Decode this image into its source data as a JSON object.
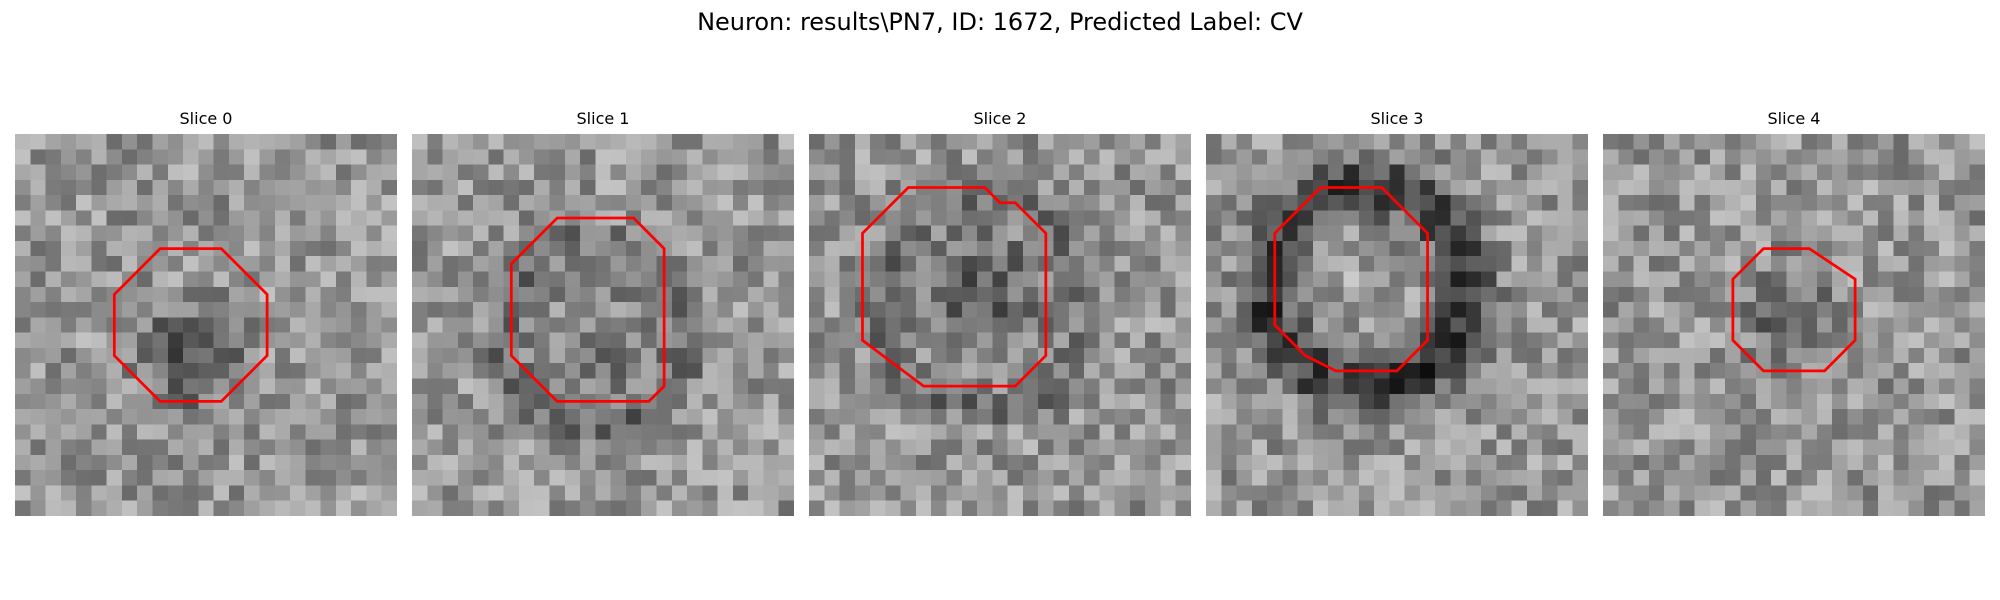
{
  "figure": {
    "title": "Neuron: results\\PN7, ID: 1672, Predicted Label: CV"
  },
  "colors": {
    "contour": "#ff0000",
    "background": "#ffffff"
  },
  "panels": [
    {
      "title": "Slice 0",
      "dark_blob": {
        "cx": 11.5,
        "cy": 14.5,
        "r": 5.0,
        "strength": 80
      },
      "shell": null,
      "ring_inner": null,
      "contour": [
        [
          9.5,
          7.5
        ],
        [
          13.5,
          7.5
        ],
        [
          16.5,
          10.5
        ],
        [
          16.5,
          14.5
        ],
        [
          13.5,
          17.5
        ],
        [
          9.5,
          17.5
        ],
        [
          6.5,
          14.5
        ],
        [
          6.5,
          10.5
        ]
      ]
    },
    {
      "title": "Slice 1",
      "dark_blob": {
        "cx": 12.0,
        "cy": 14.0,
        "r": 5.5,
        "strength": 35
      },
      "shell": {
        "cx": 12.0,
        "cy": 13.0,
        "r": 6.0,
        "width": 1.2,
        "strength": 45
      },
      "ring_inner": null,
      "contour": [
        [
          9.5,
          5.5
        ],
        [
          14.5,
          5.5
        ],
        [
          16.5,
          7.5
        ],
        [
          16.5,
          16.5
        ],
        [
          15.5,
          17.5
        ],
        [
          9.5,
          17.5
        ],
        [
          6.5,
          14.5
        ],
        [
          6.5,
          8.5
        ]
      ]
    },
    {
      "title": "Slice 2",
      "dark_blob": {
        "cx": 11.5,
        "cy": 10.5,
        "r": 6.5,
        "strength": 65
      },
      "shell": {
        "cx": 11.5,
        "cy": 11.0,
        "r": 7.0,
        "width": 1.2,
        "strength": 40
      },
      "ring_inner": null,
      "contour": [
        [
          6.5,
          3.5
        ],
        [
          11.5,
          3.5
        ],
        [
          12.5,
          4.5
        ],
        [
          13.5,
          4.5
        ],
        [
          15.5,
          6.5
        ],
        [
          15.5,
          14.5
        ],
        [
          13.5,
          16.5
        ],
        [
          7.5,
          16.5
        ],
        [
          3.5,
          13.5
        ],
        [
          3.5,
          6.5
        ]
      ]
    },
    {
      "title": "Slice 3",
      "dark_blob": null,
      "shell": {
        "cx": 10.5,
        "cy": 10.0,
        "r": 6.5,
        "width": 1.8,
        "strength": 95
      },
      "ring_inner": {
        "cx": 10.5,
        "cy": 10.5,
        "r": 4.0,
        "strength": -15
      },
      "contour": [
        [
          7.5,
          3.5
        ],
        [
          11.5,
          3.5
        ],
        [
          14.5,
          6.5
        ],
        [
          14.5,
          13.5
        ],
        [
          12.5,
          15.5
        ],
        [
          8.5,
          15.5
        ],
        [
          6.5,
          14.5
        ],
        [
          4.5,
          12.5
        ],
        [
          4.5,
          6.5
        ]
      ]
    },
    {
      "title": "Slice 4",
      "dark_blob": {
        "cx": 12.0,
        "cy": 11.5,
        "r": 4.5,
        "strength": 60
      },
      "shell": null,
      "ring_inner": null,
      "contour": [
        [
          10.5,
          7.5
        ],
        [
          13.5,
          7.5
        ],
        [
          16.5,
          9.5
        ],
        [
          16.5,
          13.5
        ],
        [
          14.5,
          15.5
        ],
        [
          10.5,
          15.5
        ],
        [
          8.5,
          13.5
        ],
        [
          8.5,
          9.5
        ]
      ]
    }
  ]
}
